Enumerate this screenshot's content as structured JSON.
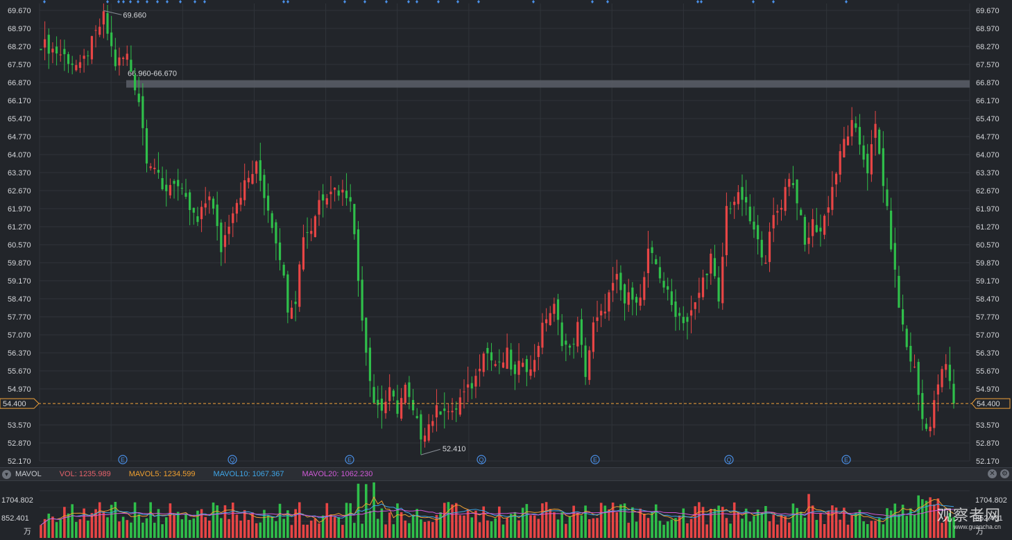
{
  "colors": {
    "background": "#22252a",
    "grid": "#30343a",
    "up": "#e84545",
    "down": "#2fbf4a",
    "last_price": "#f2a33a",
    "zone": "#5a5f68",
    "vol_label": "#e5626b",
    "mavol5": "#f0a030",
    "mavol10": "#3fa6e8",
    "mavol20": "#d05ad8",
    "event_marker": "#4a8fe6"
  },
  "price_axis": {
    "ticks": [
      "69.670",
      "68.970",
      "68.270",
      "67.570",
      "66.870",
      "66.170",
      "65.470",
      "64.770",
      "64.070",
      "63.370",
      "62.670",
      "61.970",
      "61.270",
      "60.570",
      "59.870",
      "59.170",
      "58.470",
      "57.770",
      "57.070",
      "56.370",
      "55.670",
      "54.970",
      "53.570",
      "52.870",
      "52.170"
    ]
  },
  "last_price": {
    "value": "54.400"
  },
  "annotations": {
    "high": "69.660",
    "low": "52.410",
    "zone": "66.960-66.670"
  },
  "event_markers": [
    "E",
    "Q",
    "E",
    "Q",
    "E",
    "Q",
    "E"
  ],
  "volume_panel": {
    "label": "MAVOL",
    "vol": "VOL: 1235.989",
    "mavol5": "MAVOL5: 1234.599",
    "mavol10": "MAVOL10: 1067.367",
    "mavol20": "MAVOL20: 1062.230",
    "axis_top": "1704.802",
    "axis_mid": "852.401",
    "axis_mid_right": "852.401",
    "unit": "万",
    "close_icon": "close-icon",
    "settings_icon": "gear-icon"
  },
  "watermark": {
    "cn": "观察者网",
    "en": "www.guancha.cn"
  },
  "chart_data": {
    "type": "candlestick",
    "ylim": [
      52.17,
      69.67
    ],
    "last": 54.4,
    "high": 69.66,
    "low": 52.41,
    "zone": [
      66.67,
      66.96
    ],
    "anchors": [
      [
        0,
        68.4
      ],
      [
        6,
        67.9
      ],
      [
        10,
        67.4
      ],
      [
        13,
        68.4
      ],
      [
        16,
        69.4
      ],
      [
        19,
        67.6
      ],
      [
        22,
        67.9
      ],
      [
        25,
        66.2
      ],
      [
        27,
        64.0
      ],
      [
        29,
        63.6
      ],
      [
        31,
        62.6
      ],
      [
        34,
        63.1
      ],
      [
        37,
        62.2
      ],
      [
        40,
        61.4
      ],
      [
        43,
        62.6
      ],
      [
        46,
        60.4
      ],
      [
        49,
        62.0
      ],
      [
        52,
        62.9
      ],
      [
        55,
        63.6
      ],
      [
        58,
        62.0
      ],
      [
        61,
        60.2
      ],
      [
        63,
        58.2
      ],
      [
        65,
        58.5
      ],
      [
        67,
        61.0
      ],
      [
        69,
        61.2
      ],
      [
        71,
        62.3
      ],
      [
        74,
        62.8
      ],
      [
        77,
        62.6
      ],
      [
        79,
        62.5
      ],
      [
        81,
        59.2
      ],
      [
        83,
        56.5
      ],
      [
        85,
        54.5
      ],
      [
        87,
        54.2
      ],
      [
        89,
        54.8
      ],
      [
        91,
        54.2
      ],
      [
        93,
        55.0
      ],
      [
        95,
        54.0
      ],
      [
        97,
        53.2
      ],
      [
        99,
        53.6
      ],
      [
        101,
        54.1
      ],
      [
        103,
        54.3
      ],
      [
        105,
        53.9
      ],
      [
        107,
        54.6
      ],
      [
        109,
        54.9
      ],
      [
        111,
        55.4
      ],
      [
        113,
        56.6
      ],
      [
        115,
        56.1
      ],
      [
        117,
        55.8
      ],
      [
        119,
        56.3
      ],
      [
        121,
        55.4
      ],
      [
        123,
        56.2
      ],
      [
        125,
        55.6
      ],
      [
        127,
        56.8
      ],
      [
        129,
        57.8
      ],
      [
        131,
        58.1
      ],
      [
        133,
        56.9
      ],
      [
        135,
        56.4
      ],
      [
        137,
        57.4
      ],
      [
        139,
        55.6
      ],
      [
        141,
        57.4
      ],
      [
        143,
        57.8
      ],
      [
        145,
        58.6
      ],
      [
        147,
        59.2
      ],
      [
        149,
        58.3
      ],
      [
        151,
        58.7
      ],
      [
        153,
        58.4
      ],
      [
        155,
        60.2
      ],
      [
        157,
        59.8
      ],
      [
        159,
        59.0
      ],
      [
        161,
        58.2
      ],
      [
        163,
        57.8
      ],
      [
        165,
        57.6
      ],
      [
        167,
        58.2
      ],
      [
        169,
        59.2
      ],
      [
        171,
        60.1
      ],
      [
        173,
        58.2
      ],
      [
        175,
        62.0
      ],
      [
        177,
        62.3
      ],
      [
        179,
        62.4
      ],
      [
        181,
        61.5
      ],
      [
        183,
        60.6
      ],
      [
        185,
        60.1
      ],
      [
        187,
        61.6
      ],
      [
        189,
        62.2
      ],
      [
        191,
        63.3
      ],
      [
        193,
        62.4
      ],
      [
        195,
        60.5
      ],
      [
        197,
        61.4
      ],
      [
        199,
        61.1
      ],
      [
        201,
        62.2
      ],
      [
        203,
        63.4
      ],
      [
        205,
        64.6
      ],
      [
        207,
        65.2
      ],
      [
        209,
        64.5
      ],
      [
        211,
        63.5
      ],
      [
        213,
        65.1
      ],
      [
        215,
        63.0
      ],
      [
        217,
        60.6
      ],
      [
        219,
        58.2
      ],
      [
        221,
        56.6
      ],
      [
        223,
        55.7
      ],
      [
        225,
        53.8
      ],
      [
        227,
        53.5
      ],
      [
        229,
        55.2
      ],
      [
        231,
        55.9
      ],
      [
        233,
        54.4
      ]
    ],
    "volume": {
      "ylim": [
        0,
        2200
      ],
      "mid": 852.401,
      "top": 1704.802
    }
  }
}
